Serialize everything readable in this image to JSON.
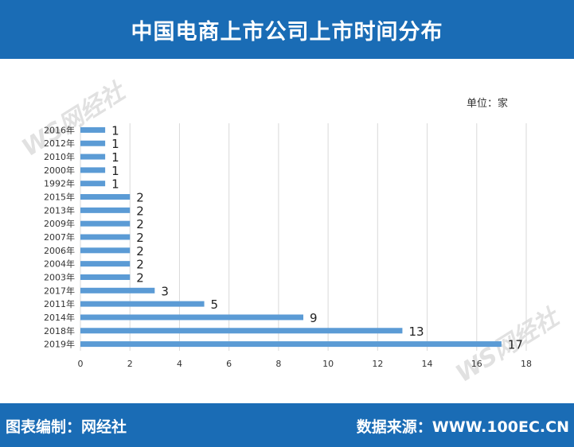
{
  "title": "中国电商上市公司上市时间分布",
  "unit_label": "单位：家",
  "watermark": "WS网经社",
  "footer": {
    "left": "图表编制：网经社",
    "right": "数据来源：WWW.100EC.CN"
  },
  "colors": {
    "header_bg": "#1a6cb5",
    "bar": "#5b9bd5",
    "grid": "#d9d9d9"
  },
  "chart_data": {
    "type": "bar",
    "orientation": "horizontal",
    "categories": [
      "2016年",
      "2012年",
      "2010年",
      "2000年",
      "1992年",
      "2015年",
      "2013年",
      "2009年",
      "2007年",
      "2006年",
      "2004年",
      "2003年",
      "2017年",
      "2011年",
      "2014年",
      "2018年",
      "2019年"
    ],
    "values": [
      1,
      1,
      1,
      1,
      1,
      2,
      2,
      2,
      2,
      2,
      2,
      2,
      3,
      5,
      9,
      13,
      17
    ],
    "xlim": [
      0,
      18
    ],
    "xticks": [
      0,
      2,
      4,
      6,
      8,
      10,
      12,
      14,
      16,
      18
    ],
    "grid": "vertical",
    "title": "中国电商上市公司上市时间分布",
    "xlabel": "",
    "ylabel": ""
  }
}
